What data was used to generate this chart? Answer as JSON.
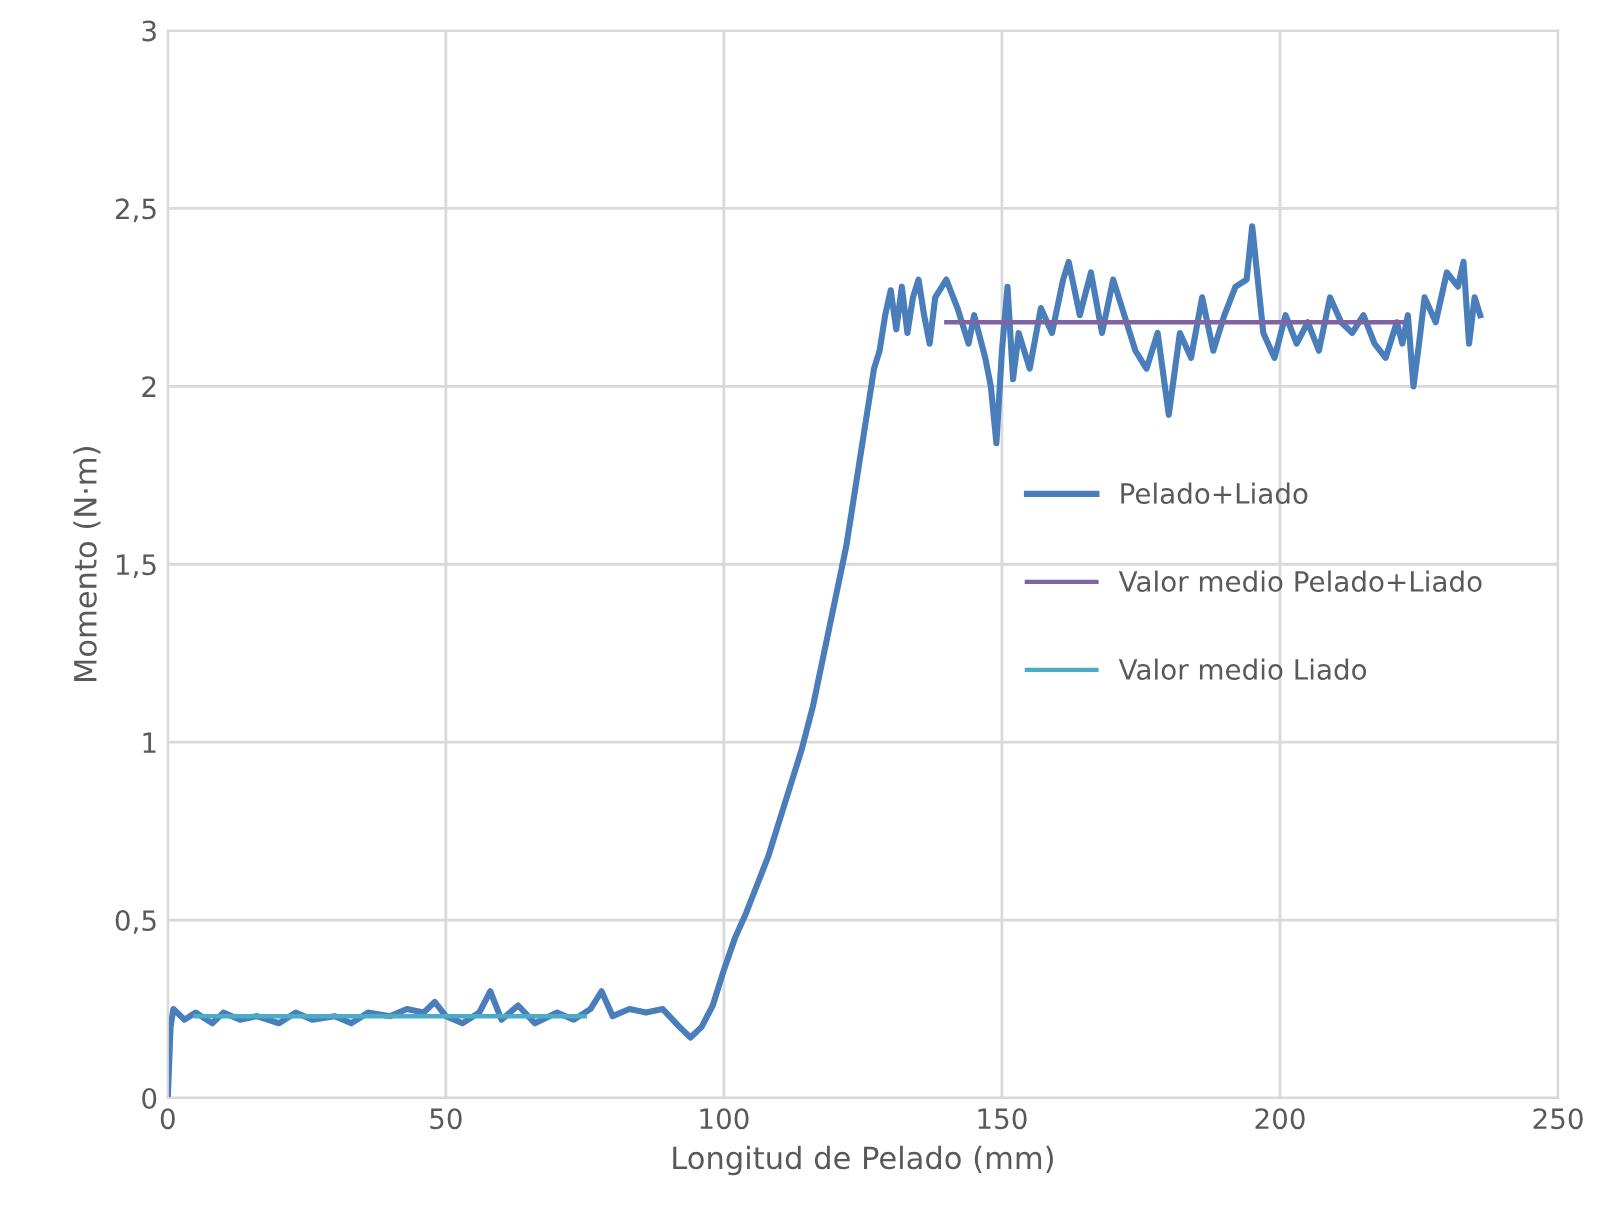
{
  "chart_data": {
    "type": "line",
    "xlabel": "Longitud de Pelado (mm)",
    "ylabel": "Momento (N·m)",
    "xlim": [
      0,
      250
    ],
    "xticks": [
      0,
      50,
      100,
      150,
      200,
      250
    ],
    "ylim": [
      0,
      3
    ],
    "yticks": [
      0,
      {
        "value": 0.5,
        "label": "0,5"
      },
      1,
      {
        "value": 1.5,
        "label": "1,5"
      },
      2,
      {
        "value": 2.5,
        "label": "2,5"
      },
      3
    ],
    "grid": true,
    "legend": "right",
    "marker": "none",
    "line_style": "solid",
    "series": [
      {
        "name": "Pelado+Liado",
        "color": "#4a7ebb",
        "x": [
          0,
          0.5,
          1,
          3,
          5,
          8,
          10,
          13,
          16,
          20,
          23,
          26,
          30,
          33,
          36,
          40,
          43,
          46,
          48,
          50,
          53,
          56,
          58,
          60,
          63,
          66,
          70,
          73,
          76,
          78,
          80,
          83,
          86,
          89,
          92,
          94,
          96,
          98,
          100,
          102,
          104,
          106,
          108,
          110,
          112,
          114,
          116,
          118,
          120,
          122,
          124,
          126,
          127,
          128,
          129,
          130,
          131,
          132,
          133,
          134,
          135,
          136,
          137,
          138,
          140,
          142,
          144,
          145,
          147,
          148,
          149,
          150,
          151,
          152,
          153,
          155,
          157,
          159,
          161,
          162,
          164,
          166,
          168,
          170,
          172,
          174,
          176,
          178,
          180,
          182,
          184,
          186,
          188,
          190,
          192,
          194,
          195,
          196,
          197,
          199,
          201,
          203,
          205,
          207,
          209,
          211,
          213,
          215,
          217,
          219,
          221,
          222,
          223,
          224,
          225,
          226,
          228,
          230,
          232,
          233,
          234,
          235,
          236
        ],
        "values": [
          0.0,
          0.2,
          0.25,
          0.22,
          0.24,
          0.21,
          0.24,
          0.22,
          0.23,
          0.21,
          0.24,
          0.22,
          0.23,
          0.21,
          0.24,
          0.23,
          0.25,
          0.24,
          0.27,
          0.23,
          0.21,
          0.24,
          0.3,
          0.22,
          0.26,
          0.21,
          0.24,
          0.22,
          0.25,
          0.3,
          0.23,
          0.25,
          0.24,
          0.25,
          0.2,
          0.17,
          0.2,
          0.26,
          0.36,
          0.45,
          0.52,
          0.6,
          0.68,
          0.78,
          0.88,
          0.98,
          1.1,
          1.25,
          1.4,
          1.55,
          1.75,
          1.95,
          2.05,
          2.1,
          2.2,
          2.27,
          2.16,
          2.28,
          2.15,
          2.25,
          2.3,
          2.2,
          2.12,
          2.25,
          2.3,
          2.22,
          2.12,
          2.2,
          2.08,
          2.0,
          1.84,
          2.1,
          2.28,
          2.02,
          2.15,
          2.05,
          2.22,
          2.15,
          2.3,
          2.35,
          2.2,
          2.32,
          2.15,
          2.3,
          2.2,
          2.1,
          2.05,
          2.15,
          1.92,
          2.15,
          2.08,
          2.25,
          2.1,
          2.2,
          2.28,
          2.3,
          2.45,
          2.3,
          2.15,
          2.08,
          2.2,
          2.12,
          2.18,
          2.1,
          2.25,
          2.18,
          2.15,
          2.2,
          2.12,
          2.08,
          2.18,
          2.12,
          2.2,
          2.0,
          2.12,
          2.25,
          2.18,
          2.32,
          2.28,
          2.35,
          2.12,
          2.25,
          2.2
        ]
      },
      {
        "name": "Valor medio Pelado+Liado",
        "color": "#8064a2",
        "x": [
          140,
          222
        ],
        "values": [
          2.18,
          2.18
        ]
      },
      {
        "name": "Valor medio Liado",
        "color": "#4bacc6",
        "x": [
          5,
          75
        ],
        "values": [
          0.23,
          0.23
        ]
      }
    ]
  }
}
